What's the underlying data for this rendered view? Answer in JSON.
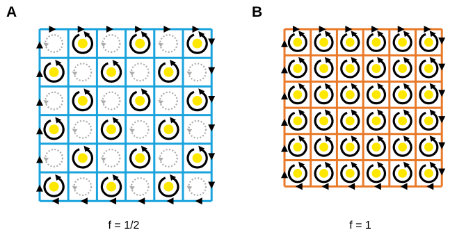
{
  "panels": [
    {
      "label": "A",
      "caption": "f = 1/2",
      "grid_color": "#1aa3dc",
      "rows": 6,
      "cols": 6,
      "vortex_pattern": "checkerboard-rows",
      "filled_rows": [
        1,
        3,
        5
      ]
    },
    {
      "label": "B",
      "caption": "f = 1",
      "grid_color": "#e87a2a",
      "rows": 6,
      "cols": 6,
      "vortex_pattern": "all-filled"
    }
  ],
  "colors": {
    "vortex_core": "#ffe800",
    "circulation_arrow": "#000000",
    "empty_cell_ring": "#aaaaaa",
    "edge_arrow": "#000000"
  }
}
